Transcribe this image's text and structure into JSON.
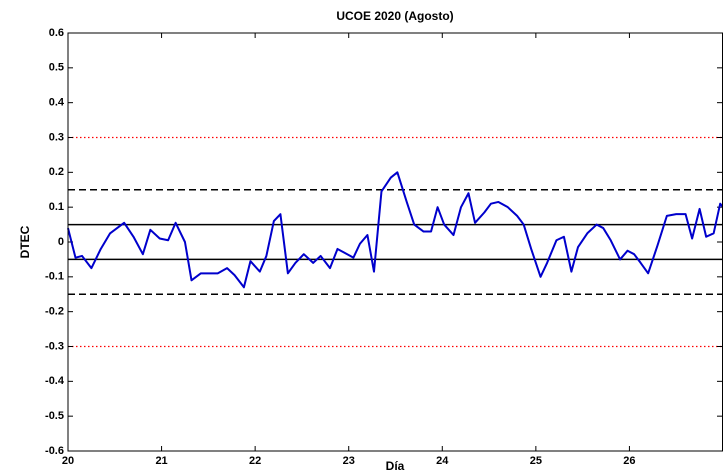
{
  "chart_data": {
    "type": "line",
    "title": "UCOE 2020 (Agosto)",
    "xlabel": "Día",
    "ylabel": "DTEC",
    "xlim": [
      20,
      27
    ],
    "xticks": [
      20,
      21,
      22,
      23,
      24,
      25,
      26
    ],
    "ylim": [
      -0.6,
      0.6
    ],
    "yticks": [
      0.6,
      0.5,
      0.4,
      0.3,
      0.2,
      0.1,
      0,
      -0.1,
      -0.2,
      -0.3,
      -0.4,
      -0.5,
      -0.6
    ],
    "hlines": [
      {
        "value": 0.05,
        "style": "solid",
        "color": "#000000"
      },
      {
        "value": -0.05,
        "style": "solid",
        "color": "#000000"
      },
      {
        "value": 0.15,
        "style": "dashed",
        "color": "#000000"
      },
      {
        "value": -0.15,
        "style": "dashed",
        "color": "#000000"
      },
      {
        "value": 0.3,
        "style": "dotted",
        "color": "#ff0000"
      },
      {
        "value": -0.3,
        "style": "dotted",
        "color": "#ff0000"
      }
    ],
    "series": [
      {
        "color": "#0000cc",
        "x": [
          20.0,
          20.08,
          20.15,
          20.25,
          20.35,
          20.45,
          20.6,
          20.7,
          20.8,
          20.88,
          20.98,
          21.07,
          21.15,
          21.25,
          21.32,
          21.42,
          21.52,
          21.6,
          21.7,
          21.78,
          21.88,
          21.95,
          22.05,
          22.12,
          22.2,
          22.27,
          22.35,
          22.43,
          22.52,
          22.62,
          22.7,
          22.8,
          22.88,
          22.95,
          23.05,
          23.12,
          23.2,
          23.27,
          23.35,
          23.45,
          23.52,
          23.62,
          23.7,
          23.8,
          23.88,
          23.95,
          24.02,
          24.12,
          24.2,
          24.28,
          24.35,
          24.45,
          24.52,
          24.6,
          24.7,
          24.8,
          24.87,
          24.95,
          25.05,
          25.12,
          25.22,
          25.3,
          25.38,
          25.45,
          25.55,
          25.65,
          25.72,
          25.8,
          25.9,
          25.98,
          26.05,
          26.12,
          26.2,
          26.3,
          26.4,
          26.5,
          26.6,
          26.67,
          26.75,
          26.82,
          26.9,
          26.97,
          27.0
        ],
        "values": [
          0.04,
          -0.045,
          -0.04,
          -0.075,
          -0.02,
          0.025,
          0.055,
          0.015,
          -0.035,
          0.035,
          0.01,
          0.005,
          0.055,
          0.0,
          -0.11,
          -0.09,
          -0.09,
          -0.09,
          -0.075,
          -0.095,
          -0.13,
          -0.055,
          -0.085,
          -0.04,
          0.06,
          0.08,
          -0.09,
          -0.06,
          -0.035,
          -0.06,
          -0.04,
          -0.075,
          -0.02,
          -0.03,
          -0.045,
          -0.005,
          0.02,
          -0.085,
          0.145,
          0.185,
          0.2,
          0.115,
          0.05,
          0.03,
          0.03,
          0.1,
          0.05,
          0.02,
          0.1,
          0.14,
          0.055,
          0.085,
          0.11,
          0.115,
          0.1,
          0.075,
          0.05,
          -0.02,
          -0.1,
          -0.06,
          0.005,
          0.015,
          -0.085,
          -0.015,
          0.025,
          0.05,
          0.04,
          0.005,
          -0.05,
          -0.025,
          -0.035,
          -0.06,
          -0.09,
          -0.01,
          0.075,
          0.08,
          0.08,
          0.01,
          0.095,
          0.015,
          0.025,
          0.11,
          0.1
        ]
      }
    ]
  }
}
